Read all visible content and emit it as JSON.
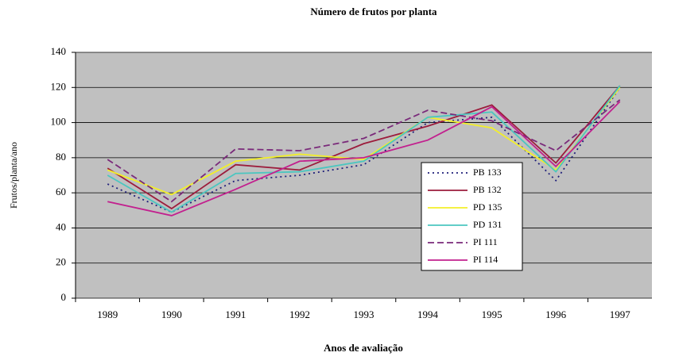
{
  "chart_data": {
    "type": "line",
    "title": "Número de frutos por planta",
    "xlabel": "Anos de avaliação",
    "ylabel": "Frutos/planta/ano",
    "categories": [
      "1989",
      "1990",
      "1991",
      "1992",
      "1993",
      "1994",
      "1995",
      "1996",
      "1997"
    ],
    "series": [
      {
        "name": "PB 133",
        "color": "#1f1f7a",
        "dash": "2,4",
        "values": [
          65,
          49,
          67,
          70,
          76,
          100,
          103,
          67,
          120
        ]
      },
      {
        "name": "PB 132",
        "color": "#9c1c3c",
        "dash": "",
        "values": [
          74,
          51,
          76,
          73,
          88,
          98,
          110,
          77,
          121
        ]
      },
      {
        "name": "PD 135",
        "color": "#f2ef2a",
        "dash": "",
        "values": [
          73,
          59,
          78,
          82,
          79,
          103,
          97,
          73,
          120
        ]
      },
      {
        "name": "PD 131",
        "color": "#4bc6c0",
        "dash": "",
        "values": [
          70,
          49,
          71,
          72,
          78,
          103,
          106,
          72,
          121
        ]
      },
      {
        "name": "PI 111",
        "color": "#7a2a7a",
        "dash": "8,4",
        "values": [
          79,
          55,
          85,
          84,
          91,
          107,
          101,
          84,
          113
        ]
      },
      {
        "name": "PI 114",
        "color": "#c2208e",
        "dash": "",
        "values": [
          55,
          47,
          62,
          78,
          80,
          90,
          109,
          75,
          112
        ]
      }
    ],
    "ylim": [
      0,
      140
    ],
    "yticks": [
      0,
      20,
      40,
      60,
      80,
      100,
      120,
      140
    ],
    "grid": true
  }
}
